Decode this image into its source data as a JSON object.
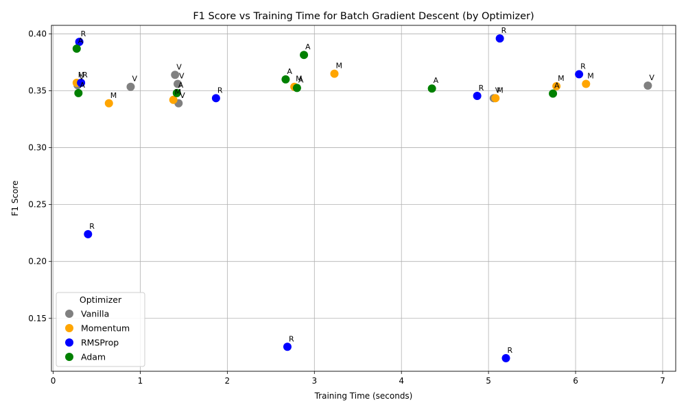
{
  "chart_data": {
    "type": "scatter",
    "title": "F1 Score vs Training Time for Batch Gradient Descent (by Optimizer)",
    "xlabel": "Training Time (seconds)",
    "ylabel": "F1 Score",
    "xlim": [
      -0.02,
      7.15
    ],
    "ylim": [
      0.1035,
      0.4075
    ],
    "xticks": [
      0,
      1,
      2,
      3,
      4,
      5,
      6,
      7
    ],
    "yticks": [
      0.15,
      0.2,
      0.25,
      0.3,
      0.35,
      0.4
    ],
    "xtick_labels": [
      "0",
      "1",
      "2",
      "3",
      "4",
      "5",
      "6",
      "7"
    ],
    "ytick_labels": [
      "0.15",
      "0.20",
      "0.25",
      "0.30",
      "0.35",
      "0.40"
    ],
    "grid": true,
    "legend": {
      "title": "Optimizer",
      "position": "lower-left",
      "entries": [
        {
          "name": "Vanilla",
          "color": "#808080"
        },
        {
          "name": "Momentum",
          "color": "#ffa500"
        },
        {
          "name": "RMSProp",
          "color": "#0000ff"
        },
        {
          "name": "Adam",
          "color": "#008000"
        }
      ]
    },
    "series": [
      {
        "name": "Vanilla",
        "label": "V",
        "color": "#808080",
        "points": [
          {
            "x": 0.28,
            "y": 0.355
          },
          {
            "x": 0.89,
            "y": 0.3535
          },
          {
            "x": 1.4,
            "y": 0.364
          },
          {
            "x": 1.43,
            "y": 0.356
          },
          {
            "x": 1.44,
            "y": 0.339
          },
          {
            "x": 5.06,
            "y": 0.3435
          },
          {
            "x": 6.83,
            "y": 0.3545
          }
        ]
      },
      {
        "name": "Momentum",
        "label": "M",
        "color": "#ffa500",
        "points": [
          {
            "x": 0.27,
            "y": 0.357
          },
          {
            "x": 0.64,
            "y": 0.339
          },
          {
            "x": 1.38,
            "y": 0.342
          },
          {
            "x": 2.77,
            "y": 0.3535
          },
          {
            "x": 3.23,
            "y": 0.365
          },
          {
            "x": 5.08,
            "y": 0.3435
          },
          {
            "x": 5.78,
            "y": 0.354
          },
          {
            "x": 6.12,
            "y": 0.356
          }
        ]
      },
      {
        "name": "RMSProp",
        "label": "R",
        "color": "#0000ff",
        "points": [
          {
            "x": 0.3,
            "y": 0.393
          },
          {
            "x": 0.32,
            "y": 0.357
          },
          {
            "x": 0.4,
            "y": 0.224
          },
          {
            "x": 1.87,
            "y": 0.3435
          },
          {
            "x": 2.69,
            "y": 0.125
          },
          {
            "x": 4.87,
            "y": 0.3455
          },
          {
            "x": 5.13,
            "y": 0.396
          },
          {
            "x": 5.2,
            "y": 0.115
          },
          {
            "x": 6.04,
            "y": 0.3645
          }
        ]
      },
      {
        "name": "Adam",
        "label": "A",
        "color": "#008000",
        "points": [
          {
            "x": 0.27,
            "y": 0.387
          },
          {
            "x": 0.29,
            "y": 0.348
          },
          {
            "x": 1.42,
            "y": 0.348
          },
          {
            "x": 2.67,
            "y": 0.36
          },
          {
            "x": 2.8,
            "y": 0.3525
          },
          {
            "x": 2.88,
            "y": 0.3815
          },
          {
            "x": 4.35,
            "y": 0.352
          },
          {
            "x": 5.74,
            "y": 0.3475
          }
        ]
      }
    ]
  }
}
